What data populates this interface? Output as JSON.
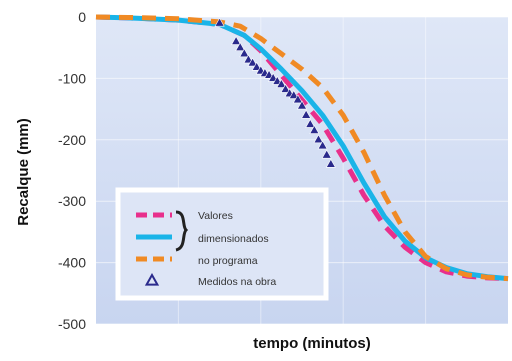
{
  "chart_data": {
    "type": "line",
    "title": "",
    "xlabel": "tempo (minutos)",
    "ylabel": "Recalque (mm)",
    "ylim": [
      -500,
      0
    ],
    "xlim": [
      0,
      100
    ],
    "yticks": [
      0,
      -100,
      -200,
      -300,
      -400,
      -500
    ],
    "xticks_labels_shown": false,
    "grid": true,
    "legend_position": "bottom-left",
    "legend": {
      "group_label_lines": [
        "Valores",
        "dimensionados",
        "no programa"
      ],
      "measured_label": "Medidos na obra"
    },
    "series": [
      {
        "style": "dashed",
        "color": "#e8308c",
        "x": [
          0,
          10,
          20,
          30,
          36,
          40,
          45,
          50,
          55,
          60,
          65,
          70,
          75,
          80,
          85,
          90,
          95,
          100
        ],
        "y": [
          0,
          -2,
          -5,
          -12,
          -30,
          -55,
          -95,
          -135,
          -175,
          -230,
          -290,
          -340,
          -375,
          -400,
          -415,
          -422,
          -425,
          -426
        ]
      },
      {
        "style": "solid",
        "color": "#1ab4e8",
        "x": [
          0,
          10,
          20,
          30,
          36,
          40,
          45,
          50,
          55,
          60,
          65,
          70,
          75,
          80,
          85,
          90,
          95,
          100
        ],
        "y": [
          0,
          -2,
          -5,
          -12,
          -30,
          -52,
          -85,
          -120,
          -160,
          -210,
          -270,
          -325,
          -365,
          -392,
          -408,
          -418,
          -423,
          -426
        ]
      },
      {
        "style": "dashed",
        "color": "#f08a24",
        "x": [
          0,
          10,
          20,
          30,
          35,
          40,
          45,
          50,
          55,
          60,
          65,
          70,
          75,
          80,
          85,
          90,
          95,
          100
        ],
        "y": [
          0,
          -1,
          -3,
          -8,
          -15,
          -35,
          -60,
          -85,
          -115,
          -160,
          -220,
          -290,
          -350,
          -390,
          -410,
          -420,
          -424,
          -426
        ]
      },
      {
        "style": "markers",
        "marker": "triangle",
        "color": "#2a2a8c",
        "x": [
          30,
          34,
          35,
          36,
          37,
          38,
          39,
          40,
          41,
          42,
          43,
          44,
          45,
          46,
          47,
          48,
          49,
          50,
          51,
          52,
          53,
          54,
          55,
          56,
          57
        ],
        "y": [
          -10,
          -40,
          -50,
          -60,
          -70,
          -75,
          -82,
          -88,
          -92,
          -95,
          -100,
          -105,
          -110,
          -118,
          -125,
          -128,
          -135,
          -145,
          -160,
          -175,
          -185,
          -200,
          -210,
          -225,
          -240
        ]
      }
    ]
  }
}
